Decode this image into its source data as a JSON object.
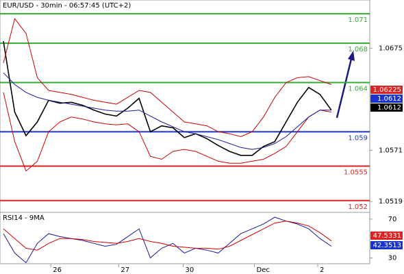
{
  "chart_data": {
    "type": "line",
    "title": "EUR/USD - 30min - 06:57:45 (UTC+2)",
    "x": [
      0,
      1,
      2,
      3,
      4,
      5,
      6,
      7,
      8,
      9,
      10,
      11,
      12,
      13,
      14,
      15,
      16,
      17,
      18,
      19,
      20,
      21,
      22,
      23,
      24,
      25,
      26,
      27,
      28,
      29
    ],
    "xlim": [
      -0.3,
      32.4
    ],
    "xticks": [
      {
        "value": 4.2,
        "label": "26"
      },
      {
        "value": 10.2,
        "label": "27"
      },
      {
        "value": 15.9,
        "label": "30"
      },
      {
        "value": 22.2,
        "label": "Dec"
      },
      {
        "value": 27.8,
        "label": "2"
      }
    ],
    "ylim": [
      1.0508,
      1.0724
    ],
    "yticks": [
      1.0675,
      1.0571,
      1.0519
    ],
    "series": [
      {
        "color": "#000000",
        "values": [
          1.0682,
          1.061,
          1.0586,
          1.06,
          1.0622,
          1.0619,
          1.062,
          1.0617,
          1.0612,
          1.0608,
          1.0606,
          1.0614,
          1.0624,
          1.059,
          1.0596,
          1.0594,
          1.0584,
          1.0588,
          1.0583,
          1.0576,
          1.057,
          1.0566,
          1.0566,
          1.0575,
          1.058,
          1.06,
          1.062,
          1.0635,
          1.0628,
          1.0612
        ]
      },
      {
        "color": "#cc0000",
        "values": [
          1.066,
          1.0705,
          1.069,
          1.0645,
          1.0632,
          1.063,
          1.0628,
          1.0625,
          1.0622,
          1.062,
          1.0618,
          1.0625,
          1.0632,
          1.063,
          1.062,
          1.061,
          1.06,
          1.0598,
          1.0596,
          1.059,
          1.0588,
          1.0585,
          1.059,
          1.0605,
          1.0625,
          1.064,
          1.0645,
          1.0646,
          1.0642,
          1.0638
        ]
      },
      {
        "color": "#cc0000",
        "values": [
          1.063,
          1.058,
          1.055,
          1.056,
          1.059,
          1.06,
          1.0605,
          1.0603,
          1.06,
          1.0598,
          1.0597,
          1.0598,
          1.059,
          1.0565,
          1.0562,
          1.057,
          1.0572,
          1.057,
          1.0565,
          1.056,
          1.0558,
          1.0558,
          1.056,
          1.0562,
          1.0568,
          1.0575,
          1.059,
          1.0605,
          1.0612,
          1.061
        ]
      },
      {
        "color": "#1a1a99",
        "values": [
          1.065,
          1.0638,
          1.063,
          1.0625,
          1.0622,
          1.062,
          1.0618,
          1.0616,
          1.0614,
          1.0612,
          1.0611,
          1.0611,
          1.0612,
          1.0606,
          1.06,
          1.0595,
          1.059,
          1.0588,
          1.0585,
          1.0582,
          1.0578,
          1.0574,
          1.0572,
          1.0574,
          1.0578,
          1.0585,
          1.0595,
          1.0605,
          1.0612,
          1.0612
        ]
      }
    ],
    "levels": [
      {
        "value": 1.071,
        "color": "#33aa33"
      },
      {
        "value": 1.068,
        "color": "#33aa33"
      },
      {
        "value": 1.064,
        "color": "#33aa33"
      },
      {
        "value": 1.059,
        "color": "#1a33cc"
      },
      {
        "value": 1.0555,
        "color": "#dd2222"
      },
      {
        "value": 1.052,
        "color": "#dd2222"
      }
    ],
    "price_boxes": [
      {
        "value": 1.06225,
        "color": "#dd2222"
      },
      {
        "value": 1.0612,
        "color": "#1a33cc"
      },
      {
        "value": 1.0612,
        "color": "#000000"
      }
    ],
    "rsi": {
      "title": "RSI14 - 9MA",
      "ylim": [
        24,
        77
      ],
      "yticks": [
        70,
        30
      ],
      "series": [
        {
          "color": "#1a1a99",
          "values": [
            55,
            35,
            25,
            45,
            55,
            52,
            50,
            48,
            45,
            42,
            44,
            52,
            60,
            30,
            40,
            45,
            35,
            40,
            38,
            35,
            45,
            55,
            60,
            65,
            72,
            68,
            65,
            60,
            50,
            42
          ]
        },
        {
          "color": "#cc0000",
          "values": [
            60,
            50,
            40,
            38,
            45,
            50,
            50,
            49,
            47,
            46,
            45,
            47,
            50,
            47,
            45,
            42,
            41,
            40,
            40,
            39,
            42,
            48,
            54,
            60,
            66,
            68,
            66,
            63,
            56,
            47.5
          ]
        }
      ],
      "boxes": [
        {
          "value": 47.5331,
          "color": "#dd2222"
        },
        {
          "value": 42.3513,
          "color": "#1a33cc"
        }
      ]
    }
  }
}
